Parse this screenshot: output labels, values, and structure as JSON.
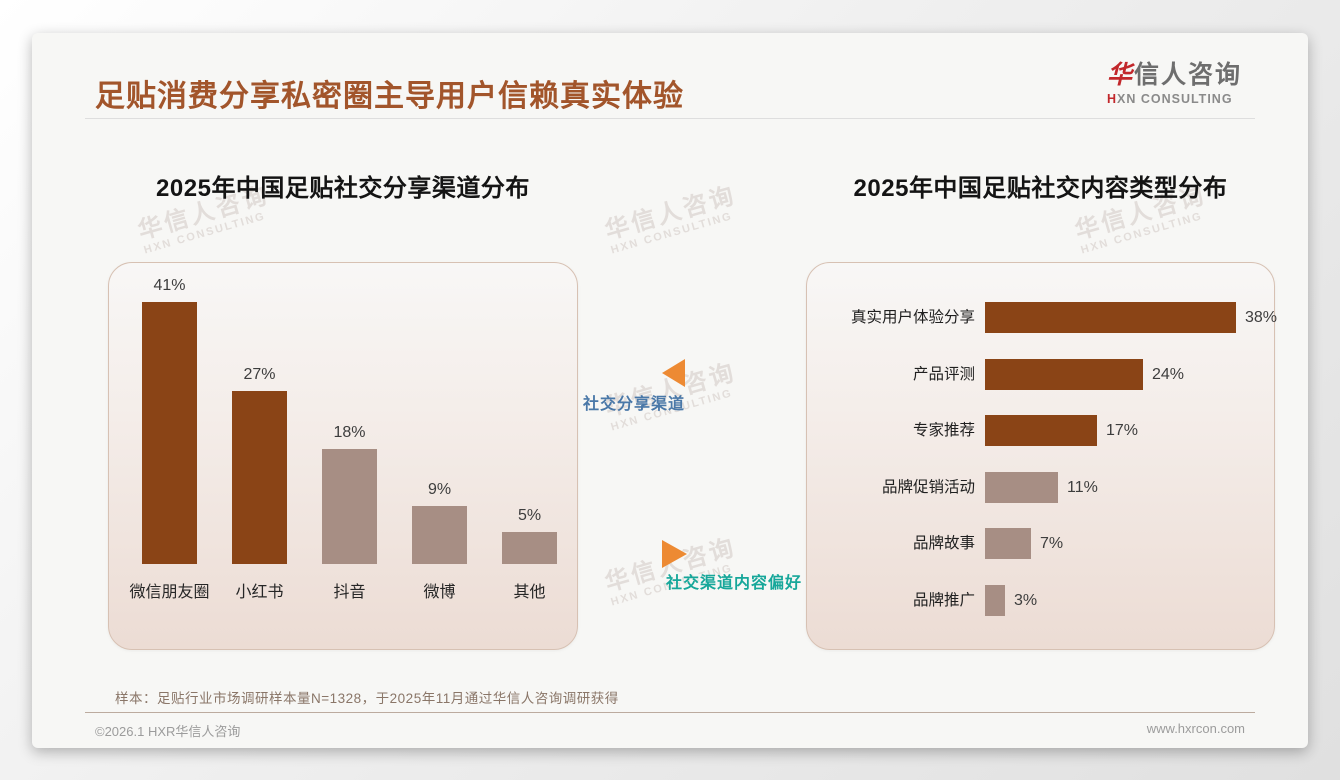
{
  "page": {
    "title": "足贴消费分享私密圈主导用户信赖真实体验",
    "logo": {
      "cn_first": "华",
      "cn_rest": "信人咨询",
      "en_first": "H",
      "en_rest": "XN CONSULTING"
    },
    "watermark": {
      "cn": "华信人咨询",
      "en": "HXN CONSULTING"
    },
    "sample_note": "样本：足贴行业市场调研样本量N=1328，于2025年11月通过华信人咨询调研获得",
    "footer": {
      "copyright": "©2026.1 HXR华信人咨询",
      "website": "www.hxrcon.com"
    }
  },
  "annotations": {
    "channel_label": "社交分享渠道",
    "content_label": "社交渠道内容偏好"
  },
  "colors": {
    "title_brown": "#A2552B",
    "bar_primary": "#8A4416",
    "bar_secondary": "#A78E84",
    "arrow_orange": "#ED8A33",
    "label_blue": "#4A78A8",
    "label_teal": "#17A79A",
    "panel_border": "#D7C1B3"
  },
  "chart_data": [
    {
      "type": "bar",
      "title": "2025年中国足贴社交分享渠道分布",
      "categories": [
        "微信朋友圈",
        "小红书",
        "抖音",
        "微博",
        "其他"
      ],
      "values": [
        41,
        27,
        18,
        9,
        5
      ],
      "unit": "%",
      "ylim": [
        0,
        45
      ],
      "grid": false,
      "legend": "none",
      "highlight_count": 2,
      "note": "first highlight_count bars use bar_primary color, rest bar_secondary"
    },
    {
      "type": "bar",
      "orientation": "horizontal",
      "title": "2025年中国足贴社交内容类型分布",
      "categories": [
        "真实用户体验分享",
        "产品评测",
        "专家推荐",
        "品牌促销活动",
        "品牌故事",
        "品牌推广"
      ],
      "values": [
        38,
        24,
        17,
        11,
        7,
        3
      ],
      "unit": "%",
      "xlim": [
        0,
        42
      ],
      "grid": false,
      "legend": "none",
      "highlight_count": 3,
      "note": "first highlight_count bars use bar_primary color, rest bar_secondary"
    }
  ]
}
